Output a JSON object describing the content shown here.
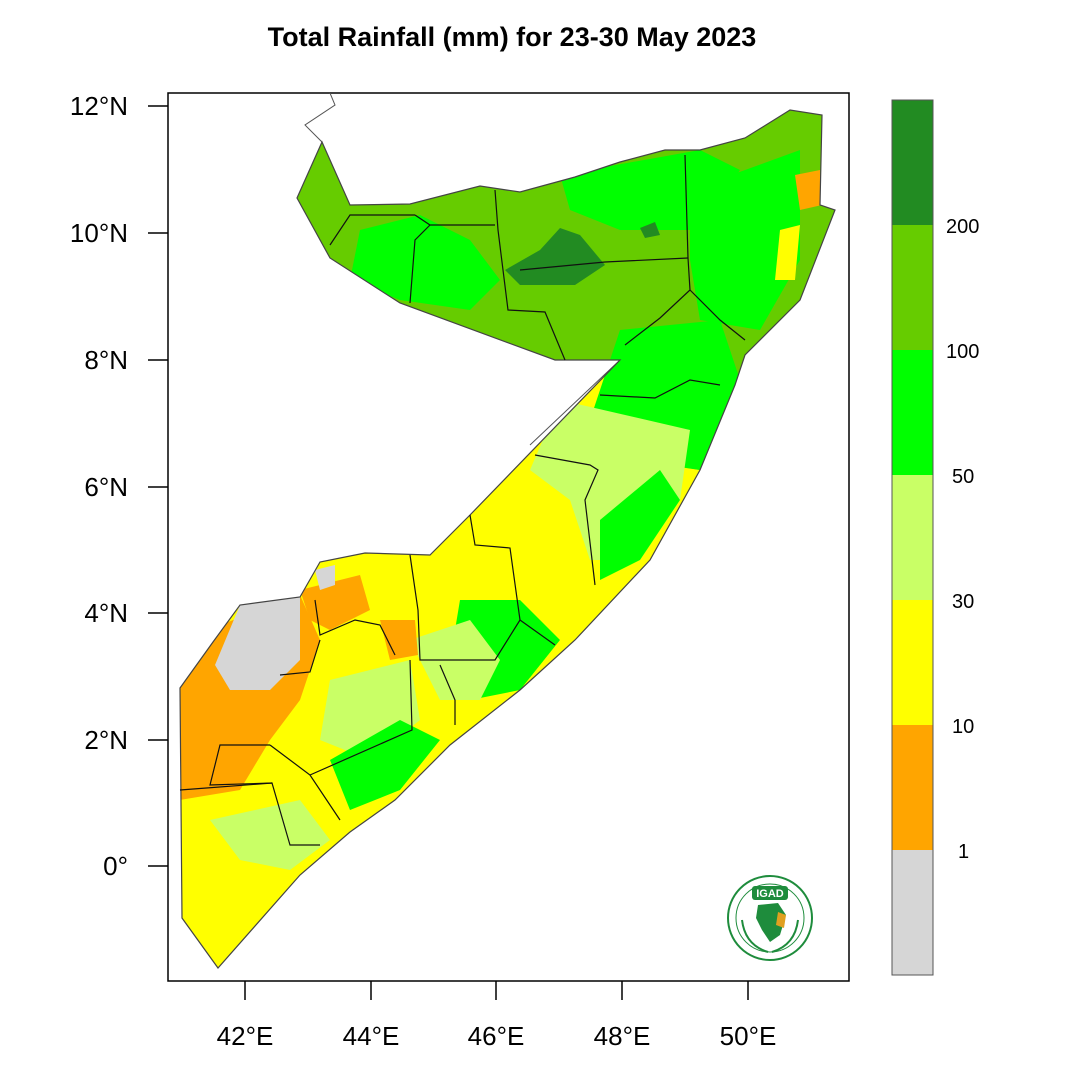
{
  "title": "Total Rainfall (mm) for 23-30 May 2023",
  "map": {
    "lat_ticks": [
      "12°N",
      "10°N",
      "8°N",
      "6°N",
      "4°N",
      "2°N",
      "0°"
    ],
    "lon_ticks": [
      "42°E",
      "44°E",
      "46°E",
      "48°E",
      "50°E"
    ],
    "lat_range": [
      -1.9,
      12.2
    ],
    "lon_range": [
      40.8,
      51.7
    ]
  },
  "legend": {
    "labels": [
      "1",
      "10",
      "30",
      "50",
      "100",
      "200"
    ],
    "bins": [
      {
        "color": "#d6d6d6"
      },
      {
        "color": "#ffa500"
      },
      {
        "color": "#ffff00"
      },
      {
        "color": "#c9ff66"
      },
      {
        "color": "#00ff00"
      },
      {
        "color": "#66cc00"
      },
      {
        "color": "#228b22"
      }
    ]
  },
  "logo": {
    "text": "IGAD",
    "icon": "igad-logo-icon",
    "colors": {
      "green": "#1e8c3c",
      "gold": "#e0a020"
    }
  },
  "colors": {
    "dark_green": "#228b22",
    "green": "#66cc00",
    "bright_green": "#00ff00",
    "light_green": "#c9ff66",
    "yellow": "#ffff00",
    "orange": "#ffa500",
    "grey": "#d6d6d6"
  }
}
